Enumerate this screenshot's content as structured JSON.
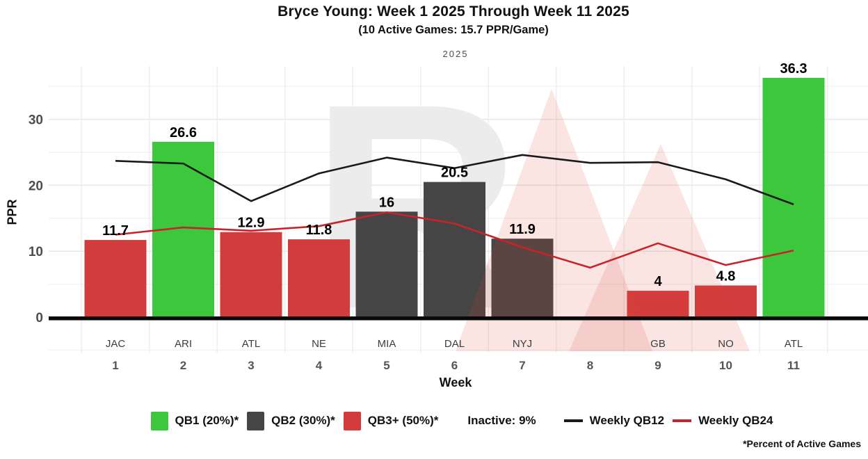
{
  "chart_data": {
    "type": "bar+line",
    "title": "Bryce Young: Week 1 2025 Through Week 11 2025",
    "subtitle": "(10 Active Games: 15.7 PPR/Game)",
    "facet_label": "2025",
    "xlabel": "Week",
    "ylabel": "PPR",
    "ylim": [
      -6,
      38
    ],
    "yticks_major": [
      0,
      10,
      20,
      30
    ],
    "yticks_minor": [
      -5,
      5,
      15,
      25,
      35
    ],
    "grid": true,
    "legend_position": "bottom",
    "weeks": [
      "1",
      "2",
      "3",
      "4",
      "5",
      "6",
      "7",
      "8",
      "9",
      "10",
      "11"
    ],
    "opponents": [
      "JAC",
      "ARI",
      "ATL",
      "NE",
      "MIA",
      "DAL",
      "NYJ",
      "",
      "GB",
      "NO",
      "ATL"
    ],
    "bars": {
      "name": "Weekly PPR",
      "values": [
        11.7,
        26.6,
        12.9,
        11.8,
        16,
        20.5,
        11.9,
        null,
        4,
        4.8,
        36.3
      ],
      "labels": [
        "11.7",
        "26.6",
        "12.9",
        "11.8",
        "16",
        "20.5",
        "11.9",
        "",
        "4",
        "4.8",
        "36.3"
      ],
      "tiers": [
        "qb3",
        "qb1",
        "qb3",
        "qb3",
        "qb2",
        "qb2",
        "qb2",
        null,
        "qb3",
        "qb3",
        "qb1"
      ]
    },
    "tier_colors": {
      "qb1": "#3cc73d",
      "qb2": "#454545",
      "qb3": "#d33c3c"
    },
    "series": [
      {
        "name": "Weekly QB12",
        "color": "#1a1a1a",
        "values": [
          23.7,
          23.3,
          17.6,
          21.8,
          24.2,
          22.6,
          24.6,
          23.4,
          23.5,
          20.9,
          17.1
        ]
      },
      {
        "name": "Weekly QB24",
        "color": "#c8232a",
        "values": [
          12.5,
          13.6,
          13.1,
          13.8,
          15.9,
          14.2,
          10.6,
          7.5,
          11.2,
          7.9,
          10.1
        ]
      }
    ],
    "watermark": "RW"
  },
  "legend": {
    "items": [
      {
        "type": "rect",
        "color": "#3cc73d",
        "label": "QB1 (20%)*"
      },
      {
        "type": "rect",
        "color": "#454545",
        "label": "QB2 (30%)*"
      },
      {
        "type": "rect",
        "color": "#d33c3c",
        "label": "QB3+ (50%)*"
      },
      {
        "type": "text",
        "color": "",
        "label": "Inactive: 9%"
      },
      {
        "type": "line",
        "color": "#1a1a1a",
        "label": "Weekly QB12"
      },
      {
        "type": "line",
        "color": "#c8232a",
        "label": "Weekly QB24"
      }
    ],
    "footnote": "*Percent of Active Games"
  }
}
